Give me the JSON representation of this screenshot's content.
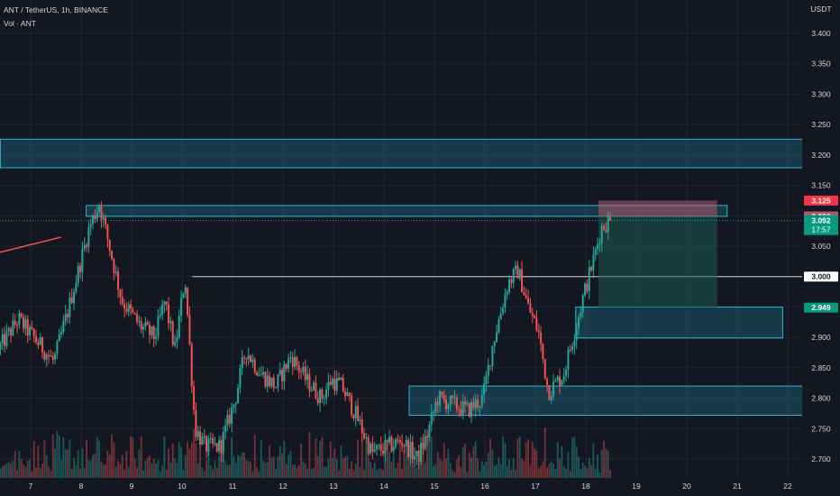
{
  "header": {
    "symbol_line": "ANT / TetherUS, 1h, BINANCE",
    "indicator_line": "Vol · ANT"
  },
  "axis": {
    "currency": "USDT",
    "y_ticks": [
      "3.400",
      "3.350",
      "3.300",
      "3.250",
      "3.200",
      "3.150",
      "3.100",
      "3.050",
      "3.000",
      "2.950",
      "2.900",
      "2.850",
      "2.800",
      "2.750",
      "2.700"
    ],
    "x_ticks": [
      "7",
      "8",
      "9",
      "10",
      "11",
      "12",
      "13",
      "14",
      "15",
      "16",
      "17",
      "18",
      "19",
      "20",
      "21",
      "22"
    ]
  },
  "tags": {
    "stop_price": "3.125",
    "entry_price": "3.099",
    "last_price": "3.092",
    "countdown": "17:57",
    "horizontal_line": "3.000",
    "target_price": "2.949"
  },
  "colors": {
    "background": "#131722",
    "up": "#26a69a",
    "down": "#ef5350",
    "zone_border": "#2bb5d4",
    "stop_fill": "#b35a6a",
    "target_fill": "#1d5a50"
  },
  "chart_data": {
    "type": "candlestick",
    "symbol": "ANT / TetherUS",
    "interval": "1h",
    "exchange": "BINANCE",
    "ylim": [
      2.68,
      3.43
    ],
    "y_unit": "USDT",
    "x_dates": [
      "7",
      "8",
      "9",
      "10",
      "11",
      "12",
      "13",
      "14",
      "15",
      "16",
      "17",
      "18",
      "19",
      "20",
      "21",
      "22"
    ],
    "price_path": [
      [
        6.4,
        2.88
      ],
      [
        6.8,
        2.93
      ],
      [
        7.2,
        2.89
      ],
      [
        7.5,
        2.86
      ],
      [
        7.8,
        2.95
      ],
      [
        8.05,
        3.03
      ],
      [
        8.2,
        3.08
      ],
      [
        8.4,
        3.12
      ],
      [
        8.6,
        3.05
      ],
      [
        8.85,
        2.96
      ],
      [
        9.2,
        2.92
      ],
      [
        9.5,
        2.9
      ],
      [
        9.7,
        2.96
      ],
      [
        9.9,
        2.88
      ],
      [
        10.1,
        3.0
      ],
      [
        10.3,
        2.75
      ],
      [
        10.5,
        2.72
      ],
      [
        10.8,
        2.72
      ],
      [
        11.1,
        2.8
      ],
      [
        11.3,
        2.88
      ],
      [
        11.6,
        2.84
      ],
      [
        11.9,
        2.82
      ],
      [
        12.2,
        2.87
      ],
      [
        12.5,
        2.83
      ],
      [
        12.8,
        2.8
      ],
      [
        13.0,
        2.83
      ],
      [
        13.2,
        2.82
      ],
      [
        13.5,
        2.77
      ],
      [
        13.8,
        2.71
      ],
      [
        14.1,
        2.72
      ],
      [
        14.4,
        2.73
      ],
      [
        14.7,
        2.7
      ],
      [
        14.9,
        2.74
      ],
      [
        15.1,
        2.8
      ],
      [
        15.4,
        2.79
      ],
      [
        15.7,
        2.78
      ],
      [
        16.0,
        2.8
      ],
      [
        16.2,
        2.89
      ],
      [
        16.5,
        2.99
      ],
      [
        16.7,
        3.01
      ],
      [
        16.9,
        2.95
      ],
      [
        17.1,
        2.91
      ],
      [
        17.3,
        2.81
      ],
      [
        17.6,
        2.84
      ],
      [
        17.85,
        2.92
      ],
      [
        18.0,
        2.97
      ],
      [
        18.2,
        3.03
      ],
      [
        18.35,
        3.08
      ],
      [
        18.5,
        3.092
      ]
    ],
    "zones": [
      {
        "from": 3.179,
        "to": 3.226,
        "x_start": 6.4,
        "x_end": 22.6
      },
      {
        "from": 3.099,
        "to": 3.117,
        "x_start": 8.1,
        "x_end": 20.8
      },
      {
        "from": 2.899,
        "to": 2.95,
        "x_start": 17.8,
        "x_end": 21.9
      },
      {
        "from": 2.772,
        "to": 2.82,
        "x_start": 14.5,
        "x_end": 22.9
      }
    ],
    "horizontal_line": {
      "value": 3.0,
      "x_start": 10.2
    },
    "position": {
      "entry": 3.099,
      "stop": 3.125,
      "target": 2.949,
      "x_start": 18.25,
      "x_end": 20.6
    },
    "trend_line": [
      [
        6.4,
        3.04
      ],
      [
        7.6,
        3.05
      ]
    ],
    "last_price": 3.092,
    "countdown": "17:57"
  }
}
